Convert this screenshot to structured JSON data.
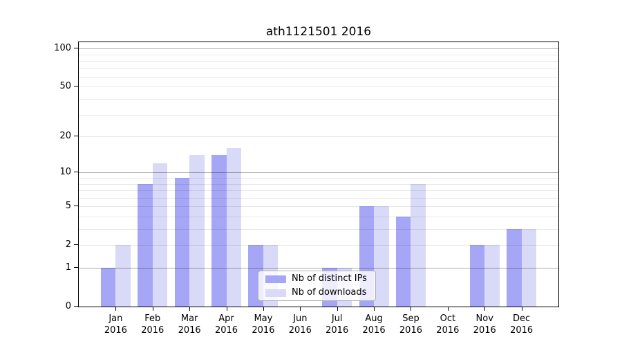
{
  "chart_data": {
    "type": "bar",
    "title": "ath1121501 2016",
    "categories": [
      "Jan",
      "Feb",
      "Mar",
      "Apr",
      "May",
      "Jun",
      "Jul",
      "Aug",
      "Sep",
      "Oct",
      "Nov",
      "Dec"
    ],
    "category_sublabel": "2016",
    "series": [
      {
        "name": "Nb of distinct IPs",
        "color": "#a6a6f6",
        "values": [
          1,
          8,
          9,
          14,
          2,
          0,
          1,
          5,
          4,
          0,
          2,
          3
        ]
      },
      {
        "name": "Nb of downloads",
        "color": "#d9d9f8",
        "values": [
          2,
          12,
          14,
          16,
          2,
          0,
          1,
          5,
          8,
          0,
          2,
          3
        ]
      }
    ],
    "y_axis": {
      "scale": "log1p",
      "tick_values": [
        0,
        1,
        2,
        5,
        10,
        20,
        50,
        100
      ],
      "major_gridlines": [
        1,
        10,
        100
      ],
      "minor_gridlines": [
        2,
        3,
        4,
        5,
        6,
        7,
        8,
        9,
        20,
        30,
        40,
        50,
        60,
        70,
        80,
        90
      ],
      "range": [
        0,
        116
      ]
    },
    "x_axis": {
      "label_line2": "2016"
    },
    "legend_position": "lower center",
    "grid": true,
    "colors": {
      "axis": "#000000",
      "major_grid": "#ababab",
      "minor_grid": "#e9e9e9",
      "background": "#ffffff"
    }
  }
}
